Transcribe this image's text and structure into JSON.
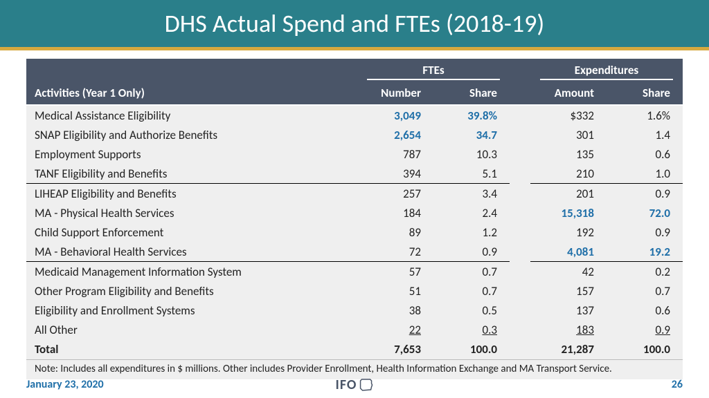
{
  "colors": {
    "title_bg": "#2a7f8a",
    "gold": "#d6a93f",
    "header_bg": "#4a5568",
    "row_bg": "#efefef",
    "highlight": "#1f6fa8",
    "text": "#222222"
  },
  "title": "DHS Actual Spend and FTEs (2018-19)",
  "table": {
    "group_headers": {
      "ftes": "FTEs",
      "exp": "Expenditures"
    },
    "column_headers": {
      "activities": "Activities (Year 1 Only)",
      "number": "Number",
      "share1": "Share",
      "amount": "Amount",
      "share2": "Share"
    },
    "rows": [
      {
        "activity": "Medical Assistance Eligibility",
        "number": "3,049",
        "share1": "39.8%",
        "amount": "$332",
        "share2": "1.6%",
        "hl_fte": true
      },
      {
        "activity": "SNAP Eligibility and Authorize Benefits",
        "number": "2,654",
        "share1": "34.7",
        "amount": "301",
        "share2": "1.4",
        "hl_fte": true
      },
      {
        "activity": "Employment Supports",
        "number": "787",
        "share1": "10.3",
        "amount": "135",
        "share2": "0.6"
      },
      {
        "activity": "TANF Eligibility and Benefits",
        "number": "394",
        "share1": "5.1",
        "amount": "210",
        "share2": "1.0",
        "section_end": true
      },
      {
        "activity": "LIHEAP Eligibility and Benefits",
        "number": "257",
        "share1": "3.4",
        "amount": "201",
        "share2": "0.9"
      },
      {
        "activity": "MA - Physical Health Services",
        "number": "184",
        "share1": "2.4",
        "amount": "15,318",
        "share2": "72.0",
        "hl_exp": true
      },
      {
        "activity": "Child Support Enforcement",
        "number": "89",
        "share1": "1.2",
        "amount": "192",
        "share2": "0.9"
      },
      {
        "activity": "MA - Behavioral Health Services",
        "number": "72",
        "share1": "0.9",
        "amount": "4,081",
        "share2": "19.2",
        "hl_exp": true,
        "section_end": true
      },
      {
        "activity": "Medicaid Management Information System",
        "number": "57",
        "share1": "0.7",
        "amount": "42",
        "share2": "0.2"
      },
      {
        "activity": "Other Program Eligibility and Benefits",
        "number": "51",
        "share1": "0.7",
        "amount": "157",
        "share2": "0.7"
      },
      {
        "activity": "Eligibility and Enrollment Systems",
        "number": "38",
        "share1": "0.5",
        "amount": "137",
        "share2": "0.6"
      },
      {
        "activity": "All Other",
        "number": "22",
        "share1": "0.3",
        "amount": "183",
        "share2": "0.9",
        "underline": true
      }
    ],
    "total": {
      "label": "Total",
      "number": "7,653",
      "share1": "100.0",
      "amount": "21,287",
      "share2": "100.0"
    },
    "note": "Note: Includes all expenditures in $ millions.  Other includes Provider Enrollment, Health Information Exchange and MA Transport Service."
  },
  "footer": {
    "date": "January 23, 2020",
    "logo_text": "IFO",
    "page": "26"
  }
}
